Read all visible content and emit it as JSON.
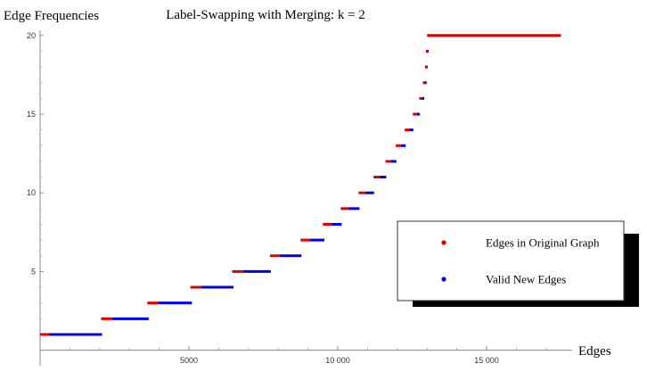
{
  "chart_data": {
    "type": "line",
    "title": "Label-Swapping with Merging: k = 2",
    "xlabel": "Edges",
    "ylabel": "Edge Frequencies",
    "xlim": [
      0,
      17500
    ],
    "ylim": [
      0,
      21
    ],
    "xticks": [
      {
        "value": 5000,
        "label": "5000"
      },
      {
        "value": 10000,
        "label": "10 000"
      },
      {
        "value": 15000,
        "label": "15 000"
      }
    ],
    "yticks": [
      {
        "value": 5,
        "label": "5"
      },
      {
        "value": 10,
        "label": "10"
      },
      {
        "value": 15,
        "label": "15"
      },
      {
        "value": 20,
        "label": "20"
      }
    ],
    "series": [
      {
        "name": "Edges in Original Graph",
        "color": "#e00000",
        "segments": [
          {
            "y": 1,
            "x0": 0,
            "x1": 300
          },
          {
            "y": 2,
            "x0": 2050,
            "x1": 2420
          },
          {
            "y": 3,
            "x0": 3600,
            "x1": 3960
          },
          {
            "y": 4,
            "x0": 5050,
            "x1": 5420
          },
          {
            "y": 5,
            "x0": 6450,
            "x1": 6820
          },
          {
            "y": 6,
            "x0": 7720,
            "x1": 8050
          },
          {
            "y": 7,
            "x0": 8750,
            "x1": 9050
          },
          {
            "y": 8,
            "x0": 9500,
            "x1": 9780
          },
          {
            "y": 9,
            "x0": 10100,
            "x1": 10350
          },
          {
            "y": 10,
            "x0": 10700,
            "x1": 10920
          },
          {
            "y": 11,
            "x0": 11200,
            "x1": 11400
          },
          {
            "y": 12,
            "x0": 11600,
            "x1": 11780
          },
          {
            "y": 13,
            "x0": 11950,
            "x1": 12120
          },
          {
            "y": 14,
            "x0": 12250,
            "x1": 12400
          },
          {
            "y": 15,
            "x0": 12520,
            "x1": 12640
          },
          {
            "y": 16,
            "x0": 12740,
            "x1": 12830
          },
          {
            "y": 17,
            "x0": 12860,
            "x1": 12910
          },
          {
            "y": 18,
            "x0": 12930,
            "x1": 12960
          },
          {
            "y": 19,
            "x0": 12960,
            "x1": 12980
          },
          {
            "y": 20,
            "x0": 13000,
            "x1": 17500
          }
        ]
      },
      {
        "name": "Valid New Edges",
        "color": "#0000e0",
        "segments": [
          {
            "y": 1,
            "x0": 300,
            "x1": 2080
          },
          {
            "y": 2,
            "x0": 2420,
            "x1": 3650
          },
          {
            "y": 3,
            "x0": 3960,
            "x1": 5100
          },
          {
            "y": 4,
            "x0": 5420,
            "x1": 6500
          },
          {
            "y": 5,
            "x0": 6820,
            "x1": 7750
          },
          {
            "y": 6,
            "x0": 8050,
            "x1": 8780
          },
          {
            "y": 7,
            "x0": 9050,
            "x1": 9550
          },
          {
            "y": 8,
            "x0": 9780,
            "x1": 10130
          },
          {
            "y": 9,
            "x0": 10350,
            "x1": 10730
          },
          {
            "y": 10,
            "x0": 10920,
            "x1": 11220
          },
          {
            "y": 11,
            "x0": 11400,
            "x1": 11630
          },
          {
            "y": 12,
            "x0": 11780,
            "x1": 11970
          },
          {
            "y": 13,
            "x0": 12120,
            "x1": 12280
          },
          {
            "y": 14,
            "x0": 12400,
            "x1": 12540
          },
          {
            "y": 15,
            "x0": 12640,
            "x1": 12760
          },
          {
            "y": 16,
            "x0": 12830,
            "x1": 12880
          },
          {
            "y": 17,
            "x0": 12910,
            "x1": 12950
          },
          {
            "y": 18,
            "x0": 12950,
            "x1": 12980
          },
          {
            "y": 19,
            "x0": 12980,
            "x1": 13010
          }
        ]
      }
    ],
    "legend": {
      "position": "right",
      "entries": [
        {
          "label": "Edges in Original Graph",
          "color": "#e00000"
        },
        {
          "label": "Valid New Edges",
          "color": "#0000e0"
        }
      ]
    }
  }
}
